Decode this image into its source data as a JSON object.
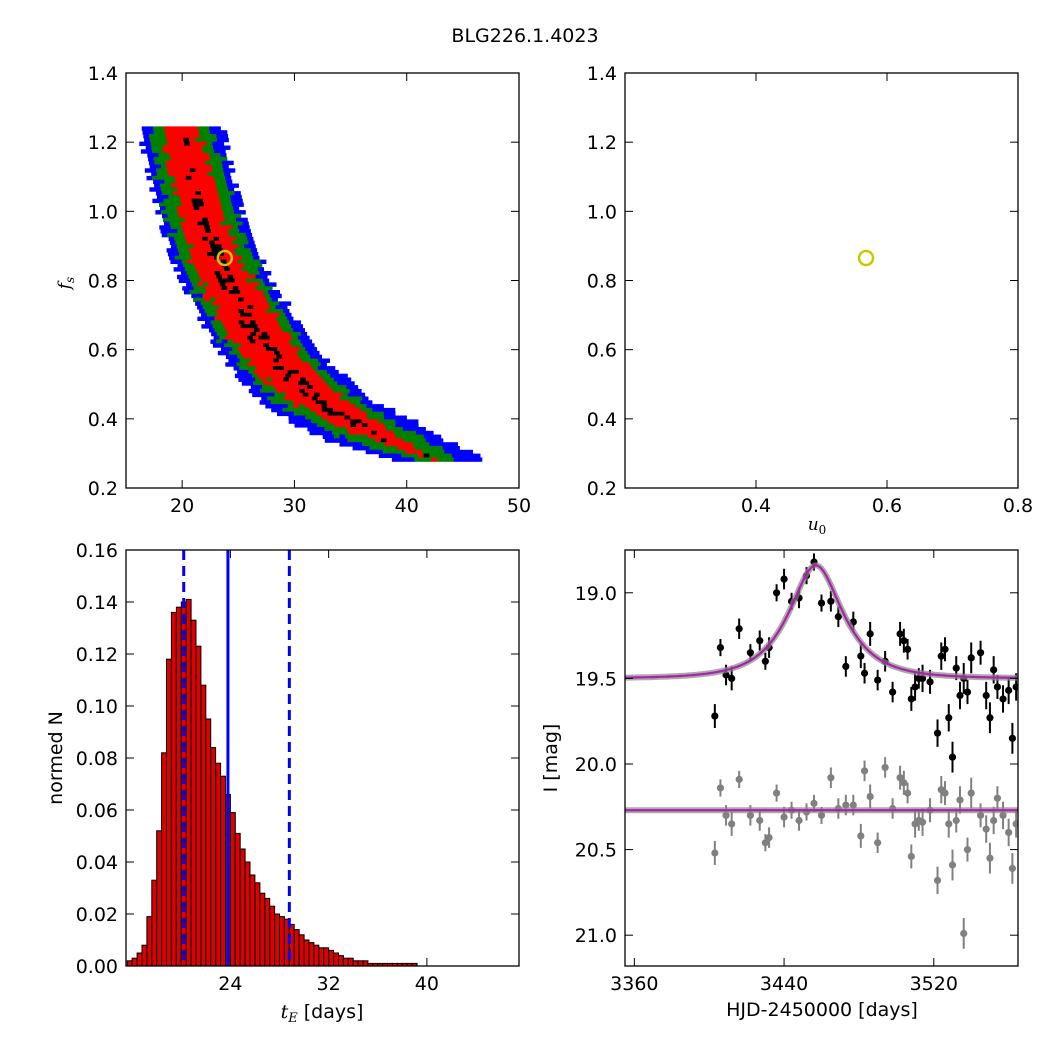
{
  "figure": {
    "title": "BLG226.1.4023"
  },
  "chart_data": [
    {
      "id": "fs-vs-tE",
      "type": "heatmap",
      "xlabel": "",
      "ylabel": "f_s",
      "xlim": [
        15,
        50
      ],
      "ylim": [
        0.2,
        1.4
      ],
      "xticks": [
        20,
        30,
        40,
        50
      ],
      "yticks": [
        0.2,
        0.4,
        0.6,
        0.8,
        1.0,
        1.2,
        1.4
      ],
      "xtick_labels": [
        "20",
        "30",
        "40",
        "50"
      ],
      "ytick_labels": [
        "0.2",
        "0.4",
        "0.6",
        "0.8",
        "1.0",
        "1.2",
        "1.4"
      ],
      "levels": [
        {
          "level": "3-sigma",
          "color": "#0000ff"
        },
        {
          "level": "2-sigma",
          "color": "#008000"
        },
        {
          "level": "1-sigma",
          "color": "#ff0000"
        },
        {
          "level": "best samples",
          "color": "#000000"
        }
      ],
      "ridge": [
        {
          "fs": 1.24,
          "tE": 19.6,
          "w1": 1.6,
          "w2": 2.9,
          "w3": 3.7
        },
        {
          "fs": 1.1,
          "tE": 20.6,
          "w1": 1.9,
          "w2": 3.0,
          "w3": 3.8
        },
        {
          "fs": 0.95,
          "tE": 21.8,
          "w1": 2.0,
          "w2": 3.1,
          "w3": 3.8
        },
        {
          "fs": 0.85,
          "tE": 23.0,
          "w1": 2.2,
          "w2": 3.3,
          "w3": 4.0
        },
        {
          "fs": 0.75,
          "tE": 24.5,
          "w1": 2.4,
          "w2": 3.4,
          "w3": 4.1
        },
        {
          "fs": 0.65,
          "tE": 26.3,
          "w1": 2.6,
          "w2": 3.5,
          "w3": 4.3
        },
        {
          "fs": 0.55,
          "tE": 28.6,
          "w1": 2.6,
          "w2": 3.6,
          "w3": 4.6
        },
        {
          "fs": 0.45,
          "tE": 31.8,
          "w1": 2.5,
          "w2": 3.8,
          "w3": 5.0
        },
        {
          "fs": 0.38,
          "tE": 35.5,
          "w1": 2.0,
          "w2": 3.8,
          "w3": 5.4
        },
        {
          "fs": 0.33,
          "tE": 38.6,
          "w1": 1.2,
          "w2": 3.4,
          "w3": 5.4
        },
        {
          "fs": 0.28,
          "tE": 42.5,
          "w1": 0.0,
          "w2": 1.8,
          "w3": 4.0
        }
      ],
      "best_fit": {
        "tE": 23.8,
        "fs": 0.865,
        "color": "#c8c800"
      }
    },
    {
      "id": "fs-vs-u0",
      "type": "heatmap",
      "xlabel": "u_0",
      "ylabel": "",
      "xlim": [
        0.2,
        0.8
      ],
      "ylim": [
        0.2,
        1.4
      ],
      "xticks": [
        0.4,
        0.6,
        0.8
      ],
      "yticks": [
        0.2,
        0.4,
        0.6,
        0.8,
        1.0,
        1.2,
        1.4
      ],
      "xtick_labels": [
        "0.4",
        "0.6",
        "0.8"
      ],
      "ytick_labels": [
        "0.2",
        "0.4",
        "0.6",
        "0.8",
        "1.0",
        "1.2",
        "1.4"
      ],
      "ridge": [
        {
          "fs": 0.27,
          "u0": 0.255,
          "w1": 0.0,
          "w2": 0.012,
          "w3": 0.02
        },
        {
          "fs": 0.35,
          "u0": 0.3,
          "w1": 0.012,
          "w2": 0.022,
          "w3": 0.03
        },
        {
          "fs": 0.45,
          "u0": 0.365,
          "w1": 0.016,
          "w2": 0.026,
          "w3": 0.034
        },
        {
          "fs": 0.55,
          "u0": 0.425,
          "w1": 0.018,
          "w2": 0.028,
          "w3": 0.036
        },
        {
          "fs": 0.65,
          "u0": 0.48,
          "w1": 0.02,
          "w2": 0.03,
          "w3": 0.038
        },
        {
          "fs": 0.75,
          "u0": 0.525,
          "w1": 0.022,
          "w2": 0.032,
          "w3": 0.04
        },
        {
          "fs": 0.85,
          "u0": 0.565,
          "w1": 0.024,
          "w2": 0.034,
          "w3": 0.042
        },
        {
          "fs": 0.95,
          "u0": 0.605,
          "w1": 0.026,
          "w2": 0.036,
          "w3": 0.044
        },
        {
          "fs": 1.05,
          "u0": 0.645,
          "w1": 0.028,
          "w2": 0.038,
          "w3": 0.046
        },
        {
          "fs": 1.15,
          "u0": 0.685,
          "w1": 0.03,
          "w2": 0.04,
          "w3": 0.048
        },
        {
          "fs": 1.24,
          "u0": 0.72,
          "w1": 0.03,
          "w2": 0.042,
          "w3": 0.05
        }
      ],
      "best_fit": {
        "u0": 0.568,
        "fs": 0.865,
        "color": "#c8c800"
      }
    },
    {
      "id": "tE-histogram",
      "type": "bar",
      "xlabel": "t_E [days]",
      "ylabel": "normed N",
      "xlim": [
        15.5,
        47.5
      ],
      "ylim": [
        0,
        0.16
      ],
      "xticks": [
        24,
        32,
        40
      ],
      "yticks": [
        0.0,
        0.02,
        0.04,
        0.06,
        0.08,
        0.1,
        0.12,
        0.14,
        0.16
      ],
      "xtick_labels": [
        "24",
        "32",
        "40"
      ],
      "ytick_labels": [
        "0.00",
        "0.02",
        "0.04",
        "0.06",
        "0.08",
        "0.10",
        "0.12",
        "0.14",
        "0.16"
      ],
      "bin_start": 15.6,
      "bin_width": 0.4,
      "values": [
        0.002,
        0.003,
        0.005,
        0.008,
        0.019,
        0.033,
        0.052,
        0.082,
        0.118,
        0.136,
        0.138,
        0.14,
        0.141,
        0.133,
        0.123,
        0.108,
        0.095,
        0.084,
        0.078,
        0.073,
        0.066,
        0.059,
        0.051,
        0.045,
        0.04,
        0.035,
        0.032,
        0.028,
        0.026,
        0.023,
        0.02,
        0.019,
        0.018,
        0.016,
        0.014,
        0.012,
        0.01,
        0.009,
        0.008,
        0.007,
        0.007,
        0.006,
        0.005,
        0.004,
        0.003,
        0.003,
        0.002,
        0.002,
        0.002,
        0.001,
        0.001,
        0.001,
        0.001,
        0.001,
        0.001,
        0.001,
        0.001,
        0.001,
        0.001
      ],
      "bar_color": "#dd0000",
      "median": 23.8,
      "lower": 20.2,
      "upper": 28.8,
      "line_color": "#0000ff"
    },
    {
      "id": "lightcurve",
      "type": "scatter",
      "xlabel": "HJD-2450000 [days]",
      "ylabel": "I [mag]",
      "xlim": [
        3355,
        3565
      ],
      "ylim": [
        21.18,
        18.75
      ],
      "y_inverted": true,
      "xticks": [
        3360,
        3440,
        3520
      ],
      "yticks": [
        19.0,
        19.5,
        20.0,
        20.5,
        21.0
      ],
      "xtick_labels": [
        "3360",
        "3440",
        "3520"
      ],
      "ytick_labels": [
        "19.0",
        "19.5",
        "20.0",
        "20.5",
        "21.0"
      ],
      "model": {
        "t0": 3457,
        "tE": 23.8,
        "u0": 0.568,
        "fs": 0.865,
        "baseline": 19.5,
        "color": "#aa22aa"
      },
      "offset_model": {
        "mag": 20.27,
        "color": "#aa22aa"
      },
      "series": [
        {
          "color": "#000000",
          "points": [
            [
              3403,
              19.72,
              0.07
            ],
            [
              3406,
              19.32,
              0.05
            ],
            [
              3409,
              19.48,
              0.06
            ],
            [
              3412,
              19.5,
              0.07
            ],
            [
              3416,
              19.21,
              0.06
            ],
            [
              3422,
              19.35,
              0.05
            ],
            [
              3427,
              19.28,
              0.06
            ],
            [
              3430,
              19.4,
              0.05
            ],
            [
              3432,
              19.32,
              0.06
            ],
            [
              3436,
              19.0,
              0.05
            ],
            [
              3440,
              18.92,
              0.06
            ],
            [
              3444,
              19.05,
              0.05
            ],
            [
              3448,
              19.03,
              0.06
            ],
            [
              3452,
              18.9,
              0.05
            ],
            [
              3456,
              18.82,
              0.05
            ],
            [
              3460,
              19.06,
              0.05
            ],
            [
              3465,
              19.05,
              0.06
            ],
            [
              3469,
              19.14,
              0.06
            ],
            [
              3473,
              19.43,
              0.06
            ],
            [
              3477,
              19.17,
              0.06
            ],
            [
              3481,
              19.37,
              0.07
            ],
            [
              3483,
              19.47,
              0.06
            ],
            [
              3486,
              19.24,
              0.07
            ],
            [
              3490,
              19.51,
              0.06
            ],
            [
              3494,
              19.4,
              0.06
            ],
            [
              3498,
              19.58,
              0.06
            ],
            [
              3502,
              19.24,
              0.07
            ],
            [
              3504,
              19.28,
              0.07
            ],
            [
              3506,
              19.33,
              0.06
            ],
            [
              3508,
              19.62,
              0.07
            ],
            [
              3510,
              19.55,
              0.08
            ],
            [
              3512,
              19.5,
              0.06
            ],
            [
              3514,
              19.5,
              0.08
            ],
            [
              3518,
              19.52,
              0.07
            ],
            [
              3522,
              19.82,
              0.08
            ],
            [
              3524,
              19.37,
              0.08
            ],
            [
              3526,
              19.33,
              0.07
            ],
            [
              3528,
              19.73,
              0.08
            ],
            [
              3530,
              19.96,
              0.09
            ],
            [
              3532,
              19.44,
              0.07
            ],
            [
              3534,
              19.6,
              0.08
            ],
            [
              3536,
              19.5,
              0.09
            ],
            [
              3538,
              19.58,
              0.07
            ],
            [
              3540,
              19.38,
              0.09
            ],
            [
              3545,
              19.35,
              0.07
            ],
            [
              3548,
              19.6,
              0.08
            ],
            [
              3550,
              19.73,
              0.09
            ],
            [
              3552,
              19.45,
              0.08
            ],
            [
              3554,
              19.55,
              0.07
            ],
            [
              3557,
              19.62,
              0.08
            ],
            [
              3560,
              19.57,
              0.08
            ],
            [
              3562,
              19.85,
              0.09
            ],
            [
              3564,
              19.55,
              0.08
            ]
          ]
        },
        {
          "color": "#808080",
          "points": [
            [
              3403,
              20.52,
              0.07
            ],
            [
              3406,
              20.14,
              0.05
            ],
            [
              3409,
              20.3,
              0.06
            ],
            [
              3412,
              20.35,
              0.07
            ],
            [
              3416,
              20.09,
              0.05
            ],
            [
              3422,
              20.3,
              0.06
            ],
            [
              3427,
              20.33,
              0.06
            ],
            [
              3430,
              20.46,
              0.05
            ],
            [
              3432,
              20.43,
              0.06
            ],
            [
              3436,
              20.17,
              0.05
            ],
            [
              3440,
              20.31,
              0.06
            ],
            [
              3444,
              20.27,
              0.05
            ],
            [
              3448,
              20.33,
              0.06
            ],
            [
              3452,
              20.28,
              0.05
            ],
            [
              3456,
              20.23,
              0.05
            ],
            [
              3460,
              20.3,
              0.05
            ],
            [
              3465,
              20.08,
              0.06
            ],
            [
              3469,
              20.26,
              0.06
            ],
            [
              3473,
              20.24,
              0.06
            ],
            [
              3477,
              20.24,
              0.06
            ],
            [
              3481,
              20.42,
              0.07
            ],
            [
              3483,
              20.04,
              0.06
            ],
            [
              3486,
              20.19,
              0.07
            ],
            [
              3490,
              20.46,
              0.06
            ],
            [
              3494,
              20.02,
              0.06
            ],
            [
              3498,
              20.26,
              0.06
            ],
            [
              3502,
              20.08,
              0.07
            ],
            [
              3504,
              20.11,
              0.07
            ],
            [
              3506,
              20.17,
              0.06
            ],
            [
              3508,
              20.54,
              0.07
            ],
            [
              3510,
              20.35,
              0.08
            ],
            [
              3512,
              20.33,
              0.06
            ],
            [
              3514,
              20.34,
              0.08
            ],
            [
              3518,
              20.27,
              0.07
            ],
            [
              3522,
              20.68,
              0.08
            ],
            [
              3524,
              20.15,
              0.08
            ],
            [
              3526,
              20.17,
              0.07
            ],
            [
              3528,
              20.35,
              0.08
            ],
            [
              3530,
              20.59,
              0.09
            ],
            [
              3532,
              20.33,
              0.07
            ],
            [
              3534,
              20.21,
              0.08
            ],
            [
              3536,
              20.99,
              0.09
            ],
            [
              3538,
              20.5,
              0.07
            ],
            [
              3540,
              20.17,
              0.09
            ],
            [
              3545,
              20.3,
              0.07
            ],
            [
              3548,
              20.38,
              0.08
            ],
            [
              3550,
              20.55,
              0.09
            ],
            [
              3552,
              20.33,
              0.08
            ],
            [
              3554,
              20.2,
              0.07
            ],
            [
              3557,
              20.3,
              0.08
            ],
            [
              3560,
              20.4,
              0.08
            ],
            [
              3562,
              20.61,
              0.09
            ],
            [
              3564,
              20.35,
              0.08
            ]
          ]
        }
      ]
    }
  ]
}
